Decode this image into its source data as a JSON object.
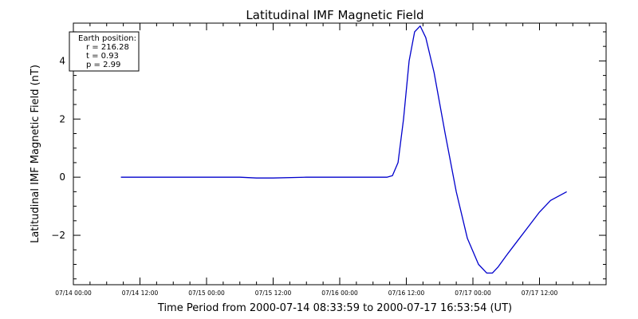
{
  "chart_data": {
    "type": "line",
    "title": "Latitudinal IMF Magnetic Field",
    "xlabel": "Time Period from 2000-07-14 08:33:59 to 2000-07-17 16:53:54 (UT)",
    "ylabel": "Latitudinal IMF Magnetic Field (nT)",
    "ylim": [
      -3.7,
      5.3
    ],
    "yticks": [
      -2,
      0,
      2,
      4
    ],
    "yticklabels": [
      "−2",
      "0",
      "2",
      "4"
    ],
    "xlim": [
      "2000-07-14 00:00",
      "2000-07-18 00:00"
    ],
    "xticks": [
      "2000-07-14 00:00",
      "2000-07-14 12:00",
      "2000-07-15 00:00",
      "2000-07-15 12:00",
      "2000-07-16 00:00",
      "2000-07-16 12:00",
      "2000-07-17 00:00",
      "2000-07-17 12:00"
    ],
    "xticklabels": [
      "07/14 00:00",
      "07/14 12:00",
      "07/15 00:00",
      "07/15 12:00",
      "07/16 00:00",
      "07/16 12:00",
      "07/17 00:00",
      "07/17 12:00"
    ],
    "grid": false,
    "legend": {
      "placement": "top-left",
      "lines": [
        "Earth position:",
        "r = 216.28",
        "t = 0.93",
        "p = 2.99"
      ]
    },
    "series": [
      {
        "color": "#0000cc",
        "x": [
          "2000-07-14 08:34",
          "2000-07-14 12:00",
          "2000-07-14 18:00",
          "2000-07-15 00:00",
          "2000-07-15 06:00",
          "2000-07-15 09:00",
          "2000-07-15 12:00",
          "2000-07-15 18:00",
          "2000-07-16 00:00",
          "2000-07-16 06:00",
          "2000-07-16 08:30",
          "2000-07-16 09:30",
          "2000-07-16 10:30",
          "2000-07-16 11:30",
          "2000-07-16 12:30",
          "2000-07-16 13:30",
          "2000-07-16 14:30",
          "2000-07-16 15:30",
          "2000-07-16 17:00",
          "2000-07-16 19:00",
          "2000-07-16 21:00",
          "2000-07-16 23:00",
          "2000-07-17 01:00",
          "2000-07-17 02:30",
          "2000-07-17 03:30",
          "2000-07-17 04:30",
          "2000-07-17 06:00",
          "2000-07-17 08:00",
          "2000-07-17 10:00",
          "2000-07-17 12:00",
          "2000-07-17 14:00",
          "2000-07-17 16:54"
        ],
        "y": [
          0,
          0,
          0,
          0,
          0,
          -0.03,
          -0.03,
          0,
          0,
          0,
          0,
          0.05,
          0.5,
          2.0,
          4.0,
          5.0,
          5.2,
          4.8,
          3.6,
          1.5,
          -0.5,
          -2.1,
          -3.0,
          -3.3,
          -3.3,
          -3.1,
          -2.7,
          -2.2,
          -1.7,
          -1.2,
          -0.8,
          -0.5
        ]
      }
    ]
  }
}
